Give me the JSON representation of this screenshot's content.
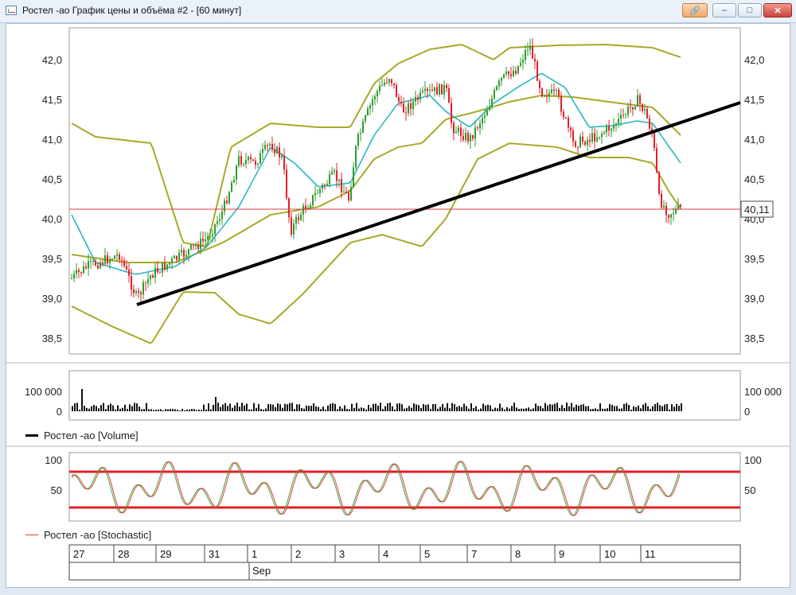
{
  "window": {
    "title": "Ростел -ао График цены и объёма #2 - [60 минут]",
    "buttons": {
      "link": "🔗",
      "minimize": "–",
      "maximize": "□",
      "close": "✕"
    }
  },
  "price_panel": {
    "y_ticks": [
      "42,0",
      "41,5",
      "41,0",
      "40,5",
      "40,0",
      "39,5",
      "39,0",
      "38,5"
    ],
    "current_price": "40,11",
    "colors": {
      "up": "#2e9b2e",
      "down": "#e0202a",
      "band": "#a8a828",
      "ma": "#2db6c2",
      "trendline": "#000000",
      "price_line": "#e03c3c"
    }
  },
  "volume_panel": {
    "y_ticks": [
      "100 000",
      "0"
    ],
    "legend_label": "Ростел -ао [Volume]",
    "legend_color": "#000000"
  },
  "stochastic_panel": {
    "y_ticks": [
      "100",
      "50"
    ],
    "legend_label": "Ростел -ао [Stochastic]",
    "legend_color": "#e03c3c",
    "overbought_level": 80,
    "oversold_level": 20
  },
  "date_axis": {
    "days": [
      "27",
      "28",
      "29",
      "31",
      "1",
      "2",
      "3",
      "4",
      "5",
      "7",
      "8",
      "9",
      "10",
      "11"
    ],
    "month_label": "Sep"
  }
}
